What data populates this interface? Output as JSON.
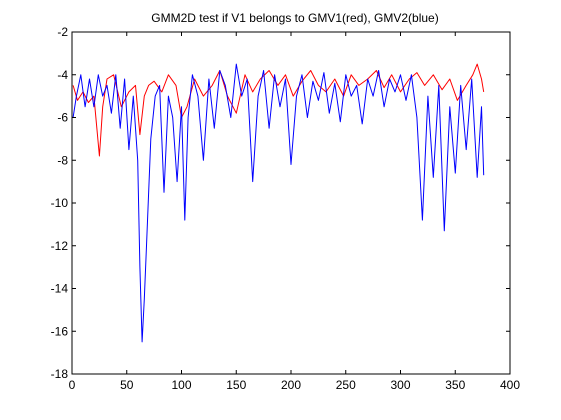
{
  "chart_data": {
    "type": "line",
    "title": "GMM2D test if V1 belongs to GMV1(red), GMV2(blue)",
    "xlabel": "",
    "ylabel": "",
    "xlim": [
      0,
      400
    ],
    "ylim": [
      -18,
      -2
    ],
    "xticks": [
      0,
      50,
      100,
      150,
      200,
      250,
      300,
      350,
      400
    ],
    "yticks": [
      -2,
      -4,
      -6,
      -8,
      -10,
      -12,
      -14,
      -16,
      -18
    ],
    "grid": false,
    "legend": "none",
    "series": [
      {
        "color": "#ff0000",
        "x": [
          1,
          5,
          10,
          15,
          20,
          25,
          28,
          32,
          38,
          45,
          52,
          58,
          62,
          66,
          70,
          75,
          82,
          88,
          95,
          100,
          105,
          112,
          120,
          128,
          135,
          142,
          150,
          158,
          165,
          172,
          180,
          188,
          195,
          202,
          210,
          218,
          225,
          232,
          240,
          248,
          255,
          262,
          270,
          278,
          285,
          292,
          300,
          308,
          315,
          322,
          330,
          338,
          345,
          352,
          360,
          366,
          370,
          374,
          376
        ],
        "values": [
          -4.5,
          -5.2,
          -4.8,
          -5.3,
          -5.0,
          -7.8,
          -5.5,
          -4.2,
          -4.0,
          -5.5,
          -4.8,
          -4.5,
          -6.8,
          -5.0,
          -4.5,
          -4.3,
          -4.8,
          -4.0,
          -4.5,
          -6.0,
          -5.5,
          -4.2,
          -5.0,
          -4.5,
          -3.8,
          -5.0,
          -5.8,
          -4.0,
          -4.8,
          -4.2,
          -3.8,
          -4.5,
          -4.0,
          -5.0,
          -4.3,
          -3.8,
          -4.5,
          -4.8,
          -4.2,
          -5.0,
          -4.0,
          -4.5,
          -4.2,
          -3.8,
          -4.6,
          -4.0,
          -4.8,
          -4.2,
          -3.9,
          -4.5,
          -4.0,
          -4.7,
          -4.2,
          -5.2,
          -4.5,
          -4.0,
          -3.5,
          -4.2,
          -4.8
        ]
      },
      {
        "color": "#0000ff",
        "x": [
          1,
          4,
          8,
          12,
          16,
          20,
          24,
          28,
          32,
          36,
          40,
          44,
          48,
          52,
          56,
          60,
          62,
          64,
          66,
          68,
          72,
          76,
          80,
          84,
          88,
          92,
          96,
          100,
          103,
          106,
          110,
          115,
          120,
          125,
          130,
          135,
          140,
          145,
          150,
          155,
          160,
          165,
          170,
          175,
          180,
          185,
          190,
          195,
          200,
          205,
          210,
          215,
          220,
          225,
          230,
          235,
          240,
          245,
          250,
          255,
          260,
          265,
          270,
          275,
          280,
          285,
          290,
          295,
          300,
          305,
          310,
          315,
          320,
          325,
          330,
          335,
          340,
          345,
          350,
          355,
          360,
          365,
          370,
          374,
          376
        ],
        "values": [
          -6.0,
          -5.0,
          -4.0,
          -5.5,
          -4.2,
          -5.5,
          -4.0,
          -5.0,
          -4.5,
          -5.8,
          -4.0,
          -6.5,
          -4.2,
          -7.5,
          -5.0,
          -8.0,
          -13.0,
          -16.5,
          -14.5,
          -12.0,
          -7.0,
          -5.0,
          -4.5,
          -9.5,
          -5.0,
          -6.0,
          -9.0,
          -5.5,
          -10.8,
          -6.0,
          -4.0,
          -5.0,
          -8.0,
          -4.2,
          -6.5,
          -3.8,
          -4.5,
          -6.0,
          -3.5,
          -5.0,
          -4.2,
          -9.0,
          -5.0,
          -3.8,
          -6.5,
          -4.0,
          -5.5,
          -4.2,
          -8.2,
          -5.0,
          -4.0,
          -6.0,
          -4.3,
          -5.2,
          -3.9,
          -5.8,
          -4.4,
          -6.2,
          -4.0,
          -5.0,
          -4.5,
          -6.3,
          -4.2,
          -5.0,
          -3.8,
          -5.5,
          -4.2,
          -4.8,
          -4.0,
          -5.2,
          -4.0,
          -6.0,
          -10.8,
          -5.0,
          -8.8,
          -4.5,
          -11.3,
          -5.5,
          -8.6,
          -4.5,
          -7.5,
          -4.2,
          -8.8,
          -5.5,
          -8.7
        ]
      }
    ]
  }
}
